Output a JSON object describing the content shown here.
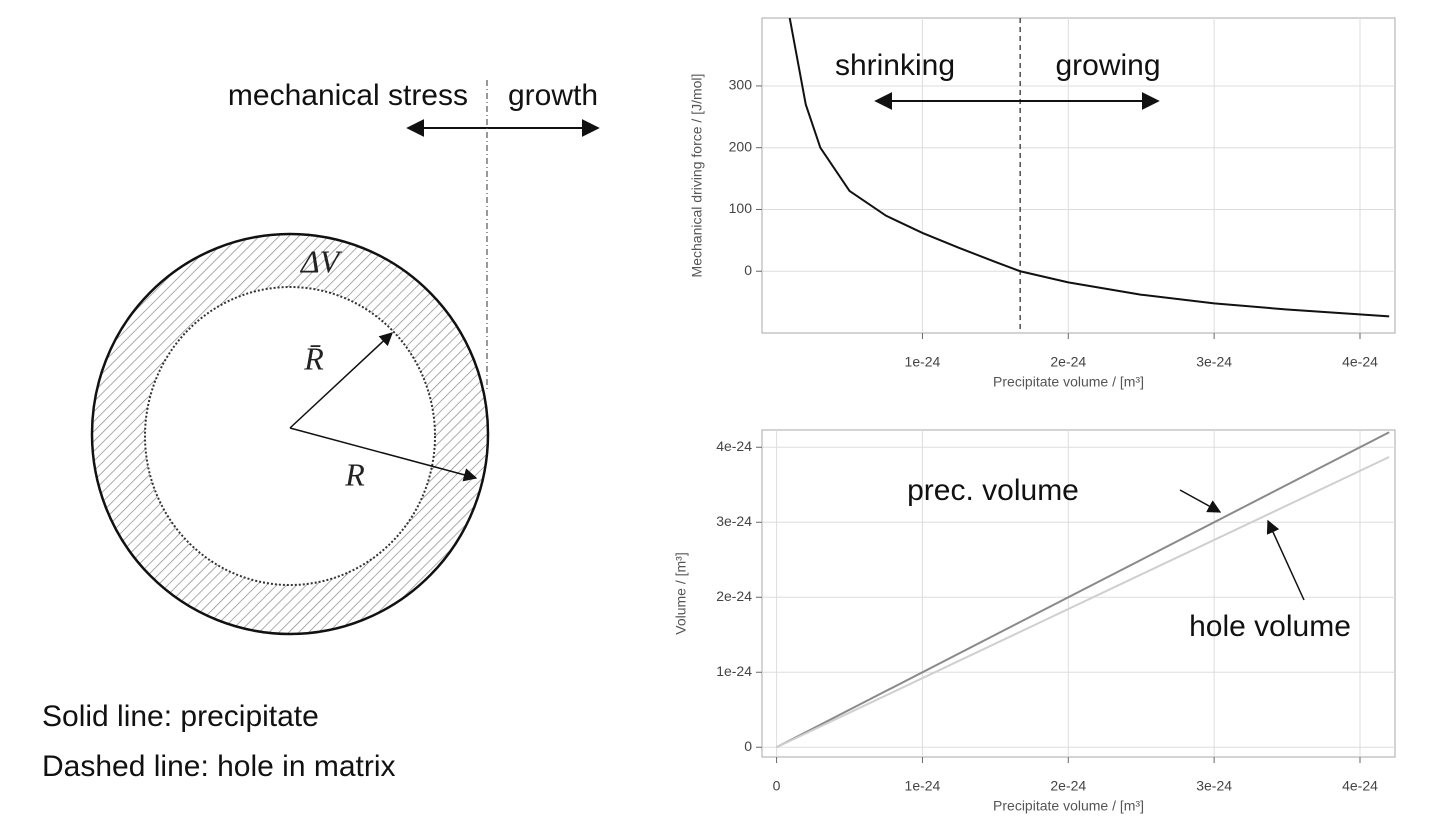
{
  "diagram": {
    "left_label": "mechanical stress",
    "right_label": "growth",
    "shell_label": "ΔV",
    "inner_radius_label": "R̄",
    "outer_radius_label": "R",
    "legend_solid": "Solid line: precipitate",
    "legend_dashed": "Dashed line: hole in matrix"
  },
  "chart_data": [
    {
      "type": "line",
      "x_label": "Precipitate volume / [m³]",
      "y_label": "Mechanical driving force / [J/mol]",
      "x": [
        9e-26,
        2e-25,
        3e-25,
        5e-25,
        7.5e-25,
        1e-24,
        1.25e-24,
        1.5e-24,
        1.67e-24,
        2e-24,
        2.5e-24,
        3e-24,
        3.5e-24,
        4.2e-24
      ],
      "series": [
        {
          "color": "#111111",
          "values": [
            410,
            270,
            200,
            130,
            90,
            62,
            38,
            15,
            0,
            -18,
            -38,
            -52,
            -62,
            -73
          ]
        }
      ],
      "marker_x": 1.67e-24,
      "annotations": [
        "shrinking",
        "growing"
      ],
      "xlim": [
        -1e-25,
        4.24e-24
      ],
      "ylim": [
        -100,
        410
      ],
      "xticks": [
        {
          "value": 1e-24,
          "label": "1e-24"
        },
        {
          "value": 2e-24,
          "label": "2e-24"
        },
        {
          "value": 3e-24,
          "label": "3e-24"
        },
        {
          "value": 4e-24,
          "label": "4e-24"
        }
      ],
      "yticks": [
        0,
        100,
        200,
        300
      ],
      "grid": true
    },
    {
      "type": "line",
      "x_label": "Precipitate volume / [m³]",
      "y_label": "Volume / [m³]",
      "x": [
        0,
        4.2e-24
      ],
      "series": [
        {
          "name": "prec. volume",
          "color": "#8a8a8a",
          "values": [
            0,
            4.2e-24
          ]
        },
        {
          "name": "hole volume",
          "color": "#cfcfcf",
          "values": [
            0,
            3.87e-24
          ]
        }
      ],
      "xlim": [
        -1e-25,
        4.24e-24
      ],
      "ylim": [
        -1.3e-25,
        4.23e-24
      ],
      "xticks": [
        0,
        {
          "value": 1e-24,
          "label": "1e-24"
        },
        {
          "value": 2e-24,
          "label": "2e-24"
        },
        {
          "value": 3e-24,
          "label": "3e-24"
        },
        {
          "value": 4e-24,
          "label": "4e-24"
        }
      ],
      "yticks": [
        0,
        {
          "value": 1e-24,
          "label": "1e-24"
        },
        {
          "value": 2e-24,
          "label": "2e-24"
        },
        {
          "value": 3e-24,
          "label": "3e-24"
        },
        {
          "value": 4e-24,
          "label": "4e-24"
        }
      ],
      "grid": true
    }
  ]
}
